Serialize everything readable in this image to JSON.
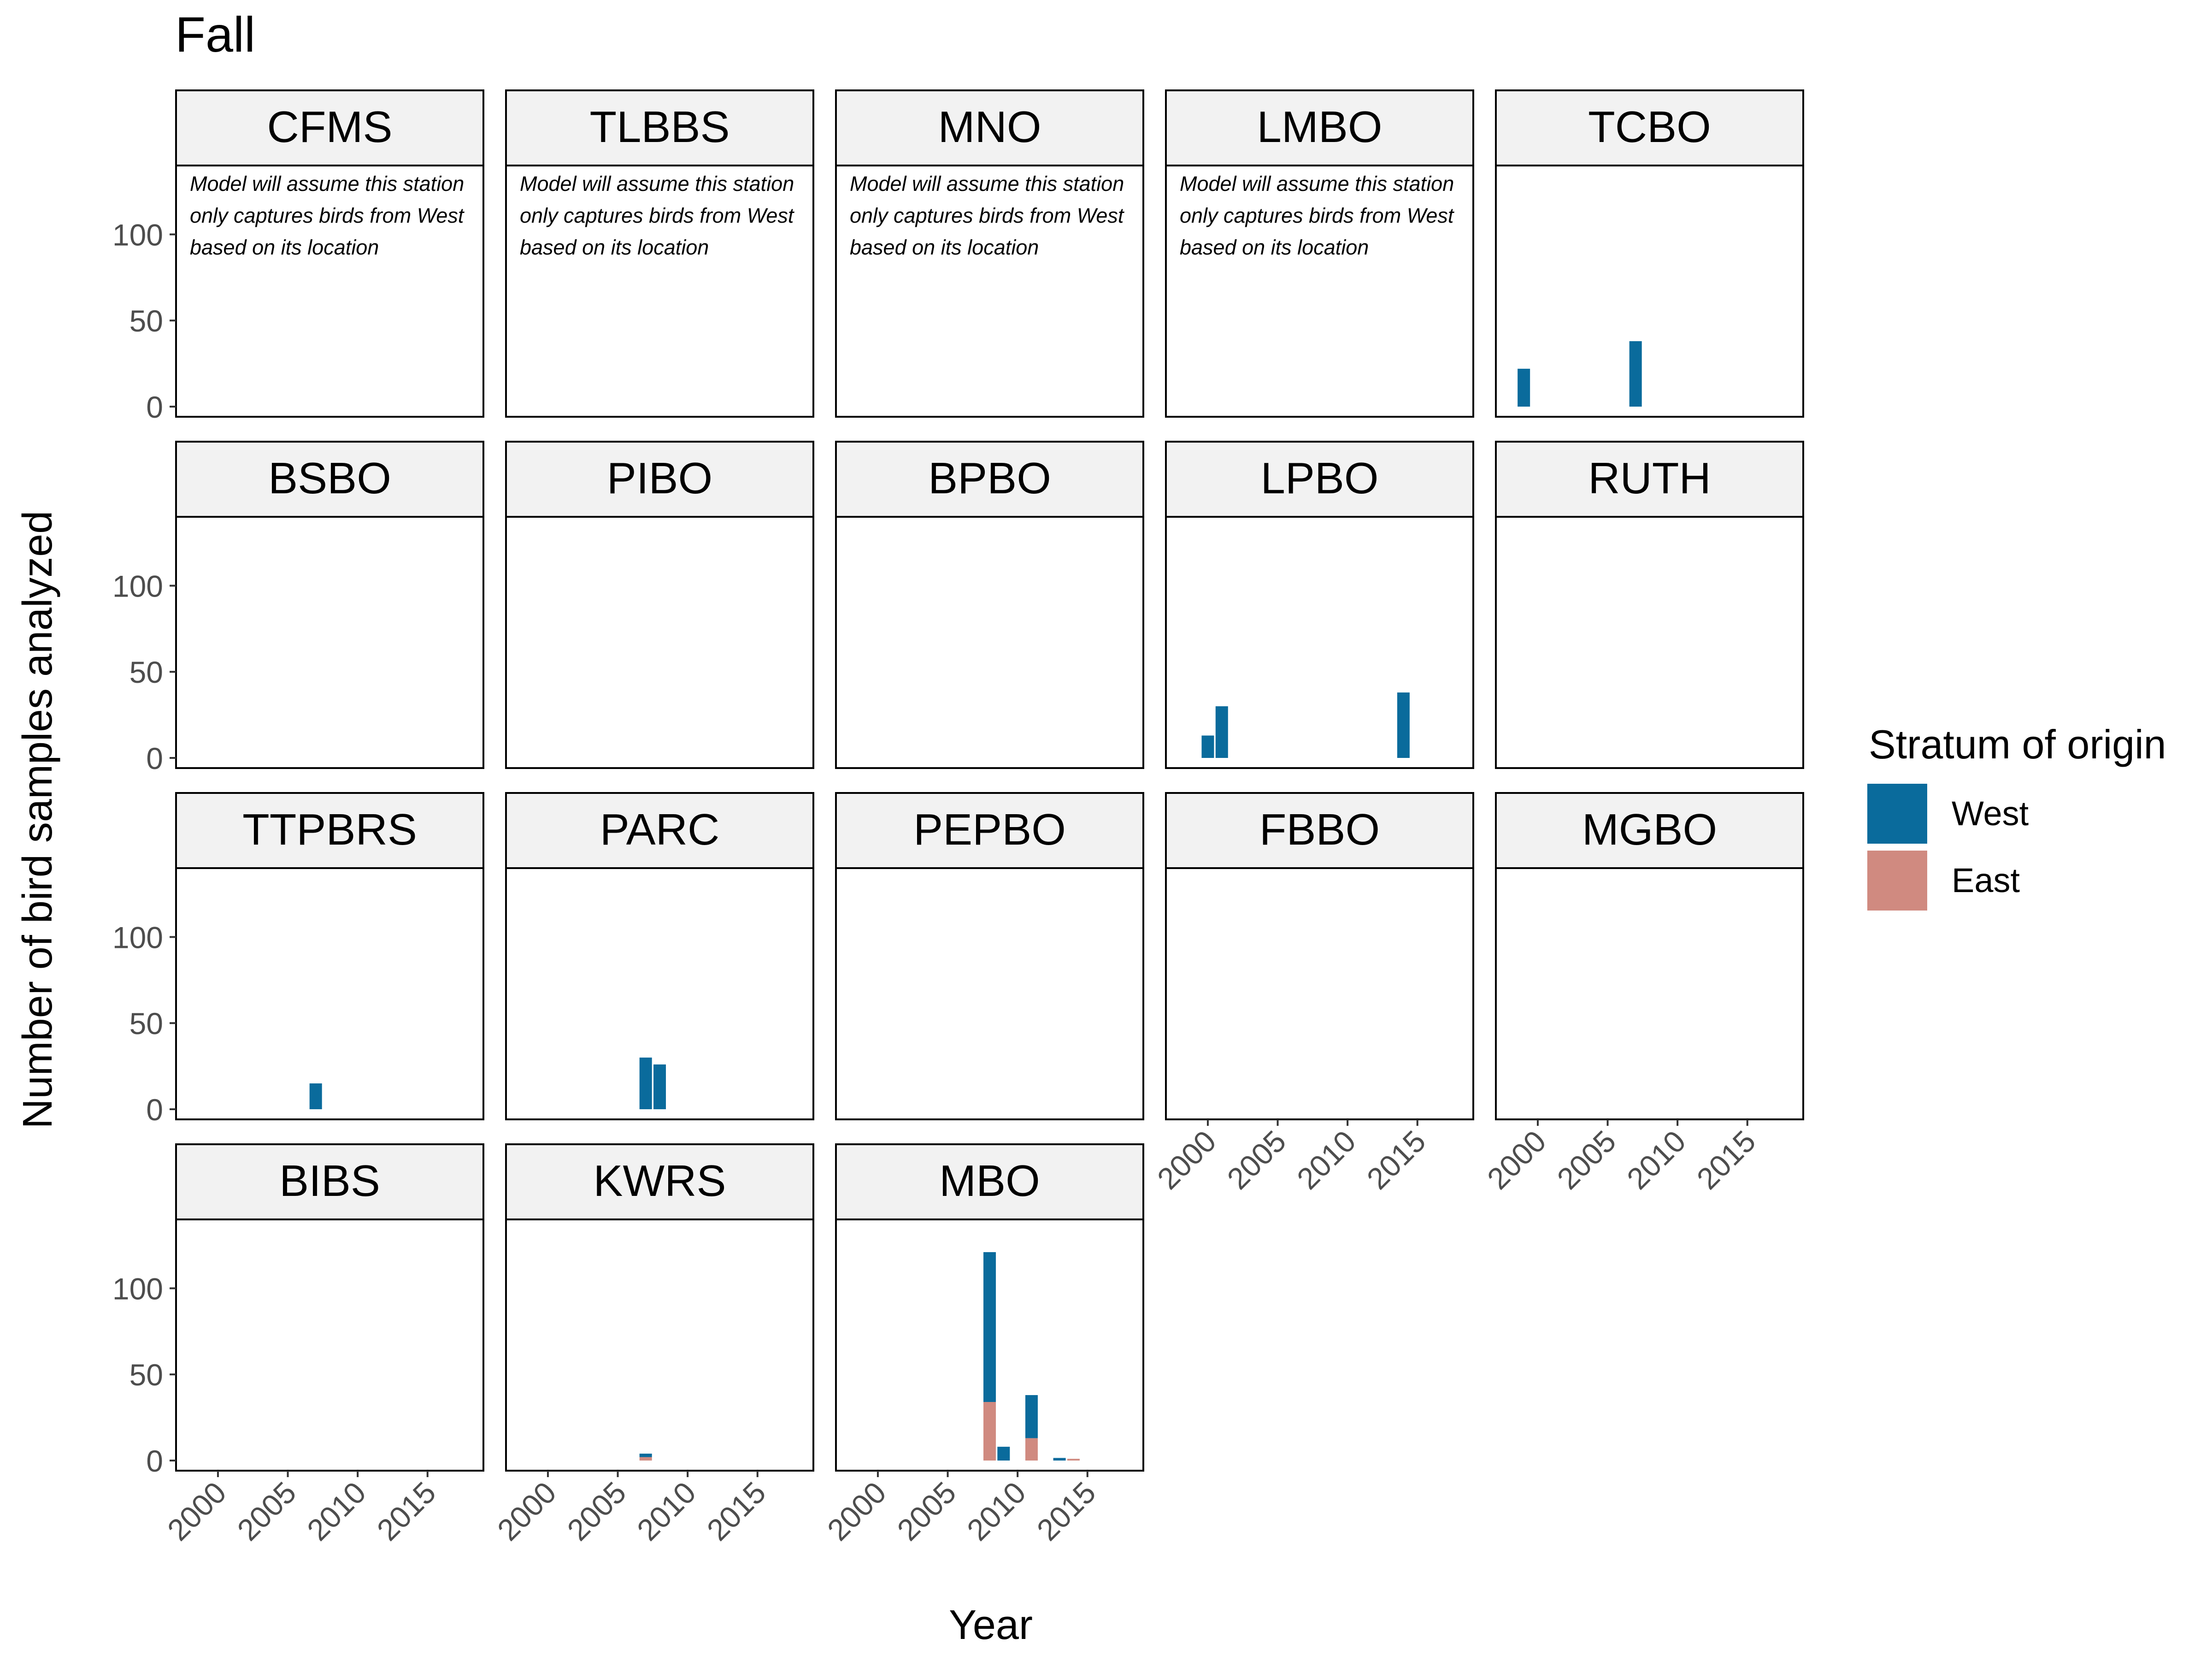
{
  "chart_data": {
    "type": "bar",
    "title": "Fall",
    "xlabel": "Year",
    "ylabel": "Number of bird samples analyzed",
    "xlim": [
      1997,
      2019
    ],
    "ylim": [
      0,
      140
    ],
    "x_ticks": [
      2000,
      2005,
      2010,
      2015
    ],
    "y_ticks": [
      0,
      50,
      100
    ],
    "legend": {
      "title": "Stratum of origin",
      "position": "right",
      "entries": [
        {
          "name": "West",
          "color": "#0a6b9c"
        },
        {
          "name": "East",
          "color": "#d08a80"
        }
      ]
    },
    "note": "Model will assume this station only captures birds from West based on its location",
    "note_lines": [
      "Model will assume this station",
      "only captures birds from West",
      "based on its location"
    ],
    "panels": [
      {
        "station": "CFMS",
        "note": true,
        "bars": []
      },
      {
        "station": "TLBBS",
        "note": true,
        "bars": []
      },
      {
        "station": "MNO",
        "note": true,
        "bars": []
      },
      {
        "station": "LMBO",
        "note": true,
        "bars": []
      },
      {
        "station": "TCBO",
        "note": false,
        "bars": [
          {
            "year": 1999,
            "West": 22,
            "East": 0
          },
          {
            "year": 2007,
            "West": 38,
            "East": 0
          }
        ]
      },
      {
        "station": "BSBO",
        "note": false,
        "bars": []
      },
      {
        "station": "PIBO",
        "note": false,
        "bars": []
      },
      {
        "station": "BPBO",
        "note": false,
        "bars": []
      },
      {
        "station": "LPBO",
        "note": false,
        "bars": [
          {
            "year": 2000,
            "West": 13,
            "East": 0
          },
          {
            "year": 2001,
            "West": 30,
            "East": 0
          },
          {
            "year": 2014,
            "West": 38,
            "East": 0
          }
        ]
      },
      {
        "station": "RUTH",
        "note": false,
        "bars": []
      },
      {
        "station": "TTPBRS",
        "note": false,
        "bars": [
          {
            "year": 2007,
            "West": 15,
            "East": 0
          }
        ]
      },
      {
        "station": "PARC",
        "note": false,
        "bars": [
          {
            "year": 2007,
            "West": 30,
            "East": 0
          },
          {
            "year": 2008,
            "West": 26,
            "East": 0
          }
        ]
      },
      {
        "station": "PEPBO",
        "note": false,
        "bars": []
      },
      {
        "station": "FBBO",
        "note": false,
        "bars": []
      },
      {
        "station": "MGBO",
        "note": false,
        "bars": []
      },
      {
        "station": "BIBS",
        "note": false,
        "bars": []
      },
      {
        "station": "KWRS",
        "note": false,
        "bars": [
          {
            "year": 2007,
            "West": 2,
            "East": 2
          }
        ]
      },
      {
        "station": "MBO",
        "note": false,
        "bars": [
          {
            "year": 2008,
            "West": 87,
            "East": 34
          },
          {
            "year": 2009,
            "West": 8,
            "East": 0
          },
          {
            "year": 2011,
            "West": 25,
            "East": 13
          },
          {
            "year": 2013,
            "West": 1.5,
            "East": 0
          },
          {
            "year": 2014,
            "West": 0,
            "East": 1
          }
        ]
      }
    ]
  }
}
